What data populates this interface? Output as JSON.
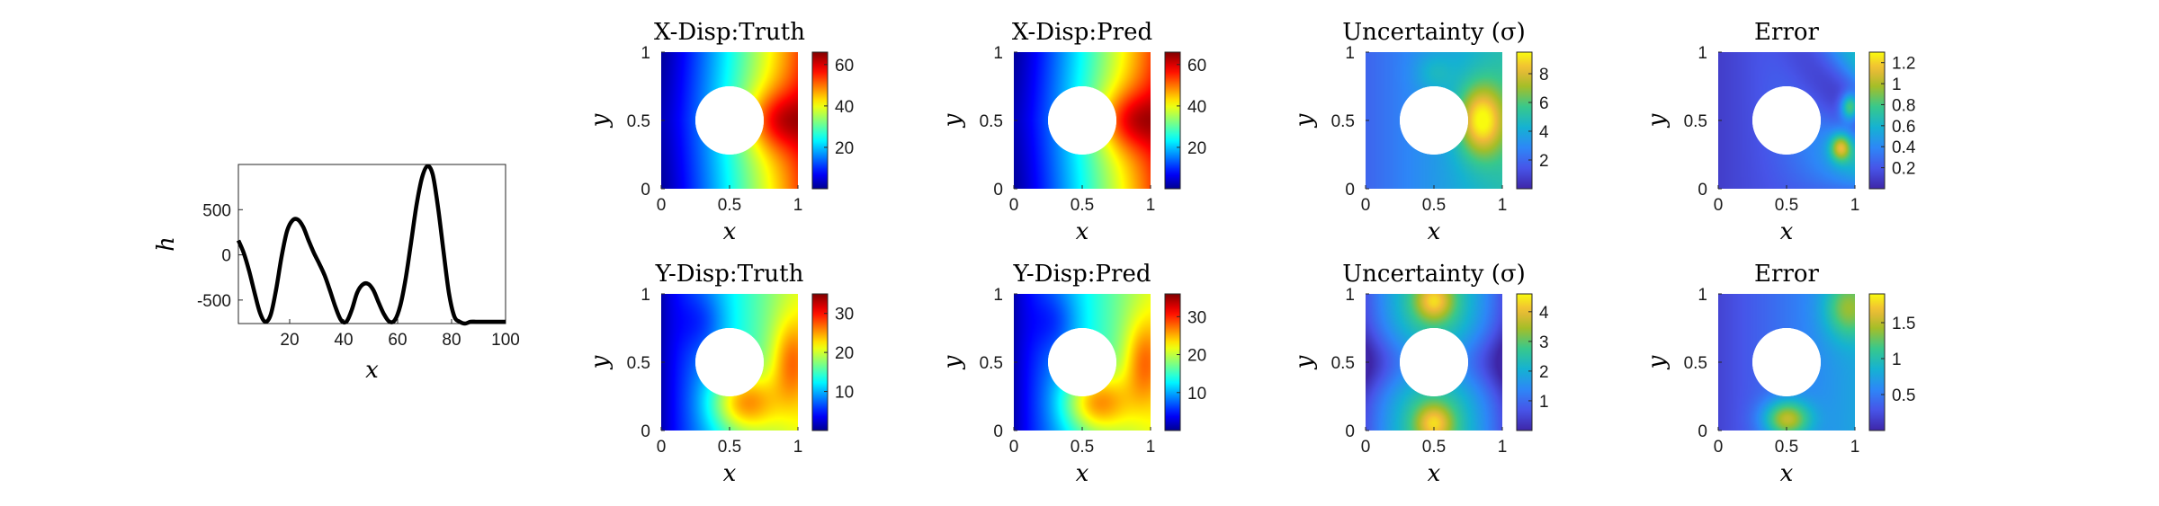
{
  "chart_data": [
    {
      "type": "line",
      "xlabel": "x",
      "ylabel": "h",
      "xlim": [
        1,
        100
      ],
      "ylim": [
        -760,
        1000
      ],
      "xticks": [
        "20",
        "40",
        "60",
        "80",
        "100"
      ],
      "yticks": [
        "500",
        "0",
        "-500"
      ],
      "xtick_values": [
        20,
        40,
        60,
        80,
        100
      ],
      "ytick_values": [
        500,
        0,
        -500
      ],
      "series": [
        {
          "x": [
            1,
            3,
            5,
            7,
            9,
            11,
            13,
            15,
            17,
            19,
            21,
            23,
            25,
            27,
            29,
            31,
            33,
            35,
            37,
            39,
            41,
            43,
            45,
            47,
            49,
            51,
            53,
            55,
            57,
            59,
            61,
            63,
            65,
            67,
            69,
            71,
            73,
            75,
            77,
            79,
            81,
            83,
            85,
            87,
            89,
            91,
            93,
            95,
            97,
            99,
            100
          ],
          "values": [
            160,
            20,
            -180,
            -420,
            -640,
            -740,
            -660,
            -380,
            -20,
            260,
            380,
            390,
            310,
            160,
            20,
            -100,
            -230,
            -400,
            -580,
            -720,
            -740,
            -610,
            -420,
            -330,
            -320,
            -390,
            -530,
            -660,
            -740,
            -720,
            -560,
            -260,
            140,
            550,
            850,
            980,
            890,
            520,
            40,
            -420,
            -680,
            -740,
            -760,
            -740,
            -740,
            -740,
            -740,
            -740,
            -740,
            -740,
            -740
          ]
        }
      ]
    },
    {
      "type": "heatmap",
      "title": "X-Disp:Truth",
      "xlabel": "x",
      "ylabel": "y",
      "xticks": [
        "0",
        "0.5",
        "1"
      ],
      "yticks": [
        "0",
        "0.5",
        "1"
      ],
      "colormap": "jet",
      "colorbar_ticks": [
        "20",
        "40",
        "60"
      ],
      "colorbar_tick_values": [
        20,
        40,
        60
      ],
      "colorbar_range": [
        0,
        66
      ],
      "hole": {
        "center": [
          0.5,
          0.5
        ],
        "radius": 0.25
      }
    },
    {
      "type": "heatmap",
      "title": "X-Disp:Pred",
      "xlabel": "x",
      "ylabel": "y",
      "xticks": [
        "0",
        "0.5",
        "1"
      ],
      "yticks": [
        "0",
        "0.5",
        "1"
      ],
      "colormap": "jet",
      "colorbar_ticks": [
        "20",
        "40",
        "60"
      ],
      "colorbar_tick_values": [
        20,
        40,
        60
      ],
      "colorbar_range": [
        0,
        66
      ],
      "hole": {
        "center": [
          0.5,
          0.5
        ],
        "radius": 0.25
      }
    },
    {
      "type": "heatmap",
      "title": "Uncertainty (σ)",
      "xlabel": "x",
      "ylabel": "y",
      "xticks": [
        "0",
        "0.5",
        "1"
      ],
      "yticks": [
        "0",
        "0.5",
        "1"
      ],
      "colormap": "parula",
      "colorbar_ticks": [
        "2",
        "4",
        "6",
        "8"
      ],
      "colorbar_tick_values": [
        2,
        4,
        6,
        8
      ],
      "colorbar_range": [
        0,
        9.5
      ],
      "hole": {
        "center": [
          0.5,
          0.5
        ],
        "radius": 0.25
      }
    },
    {
      "type": "heatmap",
      "title": "Error",
      "xlabel": "x",
      "ylabel": "y",
      "xticks": [
        "0",
        "0.5",
        "1"
      ],
      "yticks": [
        "0",
        "0.5",
        "1"
      ],
      "colormap": "parula",
      "colorbar_ticks": [
        "0.2",
        "0.4",
        "0.6",
        "0.8",
        "1",
        "1.2"
      ],
      "colorbar_tick_values": [
        0.2,
        0.4,
        0.6,
        0.8,
        1,
        1.2
      ],
      "colorbar_range": [
        0,
        1.3
      ],
      "hole": {
        "center": [
          0.5,
          0.5
        ],
        "radius": 0.25
      }
    },
    {
      "type": "heatmap",
      "title": "Y-Disp:Truth",
      "xlabel": "x",
      "ylabel": "y",
      "xticks": [
        "0",
        "0.5",
        "1"
      ],
      "yticks": [
        "0",
        "0.5",
        "1"
      ],
      "colormap": "jet",
      "colorbar_ticks": [
        "10",
        "20",
        "30"
      ],
      "colorbar_tick_values": [
        10,
        20,
        30
      ],
      "colorbar_range": [
        0,
        35
      ],
      "hole": {
        "center": [
          0.5,
          0.5
        ],
        "radius": 0.25
      }
    },
    {
      "type": "heatmap",
      "title": "Y-Disp:Pred",
      "xlabel": "x",
      "ylabel": "y",
      "xticks": [
        "0",
        "0.5",
        "1"
      ],
      "yticks": [
        "0",
        "0.5",
        "1"
      ],
      "colormap": "jet",
      "colorbar_ticks": [
        "10",
        "20",
        "30"
      ],
      "colorbar_tick_values": [
        10,
        20,
        30
      ],
      "colorbar_range": [
        0,
        36
      ],
      "hole": {
        "center": [
          0.5,
          0.5
        ],
        "radius": 0.25
      }
    },
    {
      "type": "heatmap",
      "title": "Uncertainty (σ)",
      "xlabel": "x",
      "ylabel": "y",
      "xticks": [
        "0",
        "0.5",
        "1"
      ],
      "yticks": [
        "0",
        "0.5",
        "1"
      ],
      "colormap": "parula",
      "colorbar_ticks": [
        "1",
        "2",
        "3",
        "4"
      ],
      "colorbar_tick_values": [
        1,
        2,
        3,
        4
      ],
      "colorbar_range": [
        0,
        4.6
      ],
      "hole": {
        "center": [
          0.5,
          0.5
        ],
        "radius": 0.25
      }
    },
    {
      "type": "heatmap",
      "title": "Error",
      "xlabel": "x",
      "ylabel": "y",
      "xticks": [
        "0",
        "0.5",
        "1"
      ],
      "yticks": [
        "0",
        "0.5",
        "1"
      ],
      "colormap": "parula",
      "colorbar_ticks": [
        "0.5",
        "1",
        "1.5"
      ],
      "colorbar_tick_values": [
        0.5,
        1,
        1.5
      ],
      "colorbar_range": [
        0,
        1.9
      ],
      "hole": {
        "center": [
          0.5,
          0.5
        ],
        "radius": 0.25
      }
    }
  ]
}
